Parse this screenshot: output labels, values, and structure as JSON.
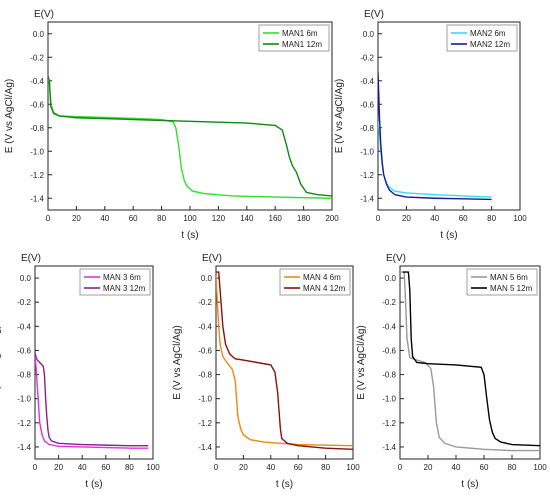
{
  "chart_data": [
    {
      "id": "MAN1",
      "type": "line",
      "title": "E(V)",
      "xlabel": "t (s)",
      "ylabel": "E (V vs AgCl/Ag)",
      "xlim": [
        0,
        200
      ],
      "ylim": [
        -1.5,
        0.1
      ],
      "xticks": [
        0,
        20,
        40,
        60,
        80,
        100,
        120,
        140,
        160,
        180,
        200
      ],
      "yticks": [
        0.0,
        -0.2,
        -0.4,
        -0.6,
        -0.8,
        -1.0,
        -1.2,
        -1.4
      ],
      "legend_position": "top-right",
      "series": [
        {
          "name": "MAN1 6m",
          "color": "#33dd33",
          "points": [
            [
              0,
              -0.38
            ],
            [
              1,
              -0.42
            ],
            [
              2,
              -0.6
            ],
            [
              4,
              -0.67
            ],
            [
              8,
              -0.7
            ],
            [
              20,
              -0.705
            ],
            [
              40,
              -0.712
            ],
            [
              60,
              -0.72
            ],
            [
              80,
              -0.73
            ],
            [
              88,
              -0.75
            ],
            [
              90,
              -0.8
            ],
            [
              92,
              -0.95
            ],
            [
              94,
              -1.15
            ],
            [
              96,
              -1.25
            ],
            [
              98,
              -1.3
            ],
            [
              102,
              -1.34
            ],
            [
              110,
              -1.36
            ],
            [
              130,
              -1.38
            ],
            [
              160,
              -1.39
            ],
            [
              200,
              -1.4
            ]
          ]
        },
        {
          "name": "MAN1 12m",
          "color": "#118811",
          "points": [
            [
              0,
              -0.36
            ],
            [
              1,
              -0.4
            ],
            [
              2,
              -0.62
            ],
            [
              4,
              -0.68
            ],
            [
              8,
              -0.7
            ],
            [
              20,
              -0.715
            ],
            [
              60,
              -0.73
            ],
            [
              100,
              -0.745
            ],
            [
              140,
              -0.76
            ],
            [
              160,
              -0.78
            ],
            [
              165,
              -0.82
            ],
            [
              168,
              -0.95
            ],
            [
              170,
              -1.05
            ],
            [
              172,
              -1.12
            ],
            [
              175,
              -1.18
            ],
            [
              178,
              -1.28
            ],
            [
              182,
              -1.35
            ],
            [
              190,
              -1.37
            ],
            [
              200,
              -1.38
            ]
          ]
        }
      ]
    },
    {
      "id": "MAN2",
      "type": "line",
      "title": "E(V)",
      "xlabel": "t (s)",
      "ylabel": "E (V vs AgCl/Ag)",
      "xlim": [
        0,
        100
      ],
      "ylim": [
        -1.5,
        0.1
      ],
      "xticks": [
        0,
        20,
        40,
        60,
        80,
        100
      ],
      "yticks": [
        0.0,
        -0.2,
        -0.4,
        -0.6,
        -0.8,
        -1.0,
        -1.2,
        -1.4
      ],
      "legend_position": "top-right",
      "series": [
        {
          "name": "MAN2 6m",
          "color": "#33ddee",
          "points": [
            [
              0,
              -0.75
            ],
            [
              1,
              -0.85
            ],
            [
              2,
              -1.0
            ],
            [
              3,
              -1.12
            ],
            [
              4,
              -1.2
            ],
            [
              6,
              -1.27
            ],
            [
              8,
              -1.31
            ],
            [
              12,
              -1.34
            ],
            [
              20,
              -1.355
            ],
            [
              40,
              -1.37
            ],
            [
              60,
              -1.38
            ],
            [
              80,
              -1.39
            ]
          ]
        },
        {
          "name": "MAN2 12m",
          "color": "#1a1a99",
          "points": [
            [
              0,
              -0.33
            ],
            [
              0.5,
              -0.5
            ],
            [
              1,
              -0.7
            ],
            [
              2,
              -0.95
            ],
            [
              3,
              -1.1
            ],
            [
              4,
              -1.2
            ],
            [
              6,
              -1.28
            ],
            [
              8,
              -1.33
            ],
            [
              12,
              -1.37
            ],
            [
              20,
              -1.39
            ],
            [
              40,
              -1.4
            ],
            [
              60,
              -1.405
            ],
            [
              80,
              -1.41
            ]
          ]
        }
      ]
    },
    {
      "id": "MAN3",
      "type": "line",
      "title": "E(V)",
      "xlabel": "t (s)",
      "ylabel": "E (V vs AgCl/Ag)",
      "xlim": [
        0,
        100
      ],
      "ylim": [
        -1.5,
        0.1
      ],
      "xticks": [
        0,
        20,
        40,
        60,
        80,
        100
      ],
      "yticks": [
        0.0,
        -0.2,
        -0.4,
        -0.6,
        -0.8,
        -1.0,
        -1.2,
        -1.4
      ],
      "legend_position": "top-right",
      "series": [
        {
          "name": "MAN 3 6m",
          "color": "#dd33dd",
          "points": [
            [
              0,
              -0.65
            ],
            [
              1,
              -0.75
            ],
            [
              2,
              -0.9
            ],
            [
              3,
              -1.05
            ],
            [
              4,
              -1.2
            ],
            [
              6,
              -1.3
            ],
            [
              8,
              -1.35
            ],
            [
              12,
              -1.38
            ],
            [
              20,
              -1.395
            ],
            [
              40,
              -1.4
            ],
            [
              60,
              -1.405
            ],
            [
              80,
              -1.41
            ],
            [
              96,
              -1.41
            ]
          ]
        },
        {
          "name": "MAN 3 12m",
          "color": "#882288",
          "points": [
            [
              0,
              -0.62
            ],
            [
              1,
              -0.66
            ],
            [
              2,
              -0.68
            ],
            [
              4,
              -0.7
            ],
            [
              7,
              -0.73
            ],
            [
              8,
              -0.8
            ],
            [
              9,
              -1.0
            ],
            [
              10,
              -1.15
            ],
            [
              11,
              -1.26
            ],
            [
              12,
              -1.32
            ],
            [
              14,
              -1.35
            ],
            [
              20,
              -1.37
            ],
            [
              40,
              -1.38
            ],
            [
              60,
              -1.385
            ],
            [
              80,
              -1.39
            ],
            [
              96,
              -1.39
            ]
          ]
        }
      ]
    },
    {
      "id": "MAN4",
      "type": "line",
      "title": "E(V)",
      "xlabel": "t (s)",
      "ylabel": "E (V vs AgCl/Ag)",
      "xlim": [
        0,
        100
      ],
      "ylim": [
        -1.5,
        0.1
      ],
      "xticks": [
        0,
        20,
        40,
        60,
        80,
        100
      ],
      "yticks": [
        0.0,
        -0.2,
        -0.4,
        -0.6,
        -0.8,
        -1.0,
        -1.2,
        -1.4
      ],
      "legend_position": "top-right",
      "series": [
        {
          "name": "MAN 4 6m",
          "color": "#ee8811",
          "points": [
            [
              0,
              0.02
            ],
            [
              1,
              -0.2
            ],
            [
              2,
              -0.4
            ],
            [
              3,
              -0.55
            ],
            [
              5,
              -0.65
            ],
            [
              8,
              -0.7
            ],
            [
              12,
              -0.76
            ],
            [
              14,
              -0.85
            ],
            [
              15,
              -1.0
            ],
            [
              16,
              -1.15
            ],
            [
              18,
              -1.25
            ],
            [
              20,
              -1.3
            ],
            [
              25,
              -1.34
            ],
            [
              35,
              -1.36
            ],
            [
              60,
              -1.38
            ],
            [
              100,
              -1.39
            ]
          ]
        },
        {
          "name": "MAN 4 12m",
          "color": "#881111",
          "points": [
            [
              0,
              0.05
            ],
            [
              2,
              0.05
            ],
            [
              3,
              -0.1
            ],
            [
              5,
              -0.4
            ],
            [
              7,
              -0.55
            ],
            [
              10,
              -0.63
            ],
            [
              14,
              -0.67
            ],
            [
              20,
              -0.68
            ],
            [
              30,
              -0.7
            ],
            [
              40,
              -0.72
            ],
            [
              43,
              -0.78
            ],
            [
              45,
              -0.95
            ],
            [
              46,
              -1.1
            ],
            [
              47,
              -1.25
            ],
            [
              48,
              -1.33
            ],
            [
              52,
              -1.37
            ],
            [
              60,
              -1.39
            ],
            [
              80,
              -1.41
            ],
            [
              100,
              -1.42
            ]
          ]
        }
      ]
    },
    {
      "id": "MAN5",
      "type": "line",
      "title": "E(V)",
      "xlabel": "t (s)",
      "ylabel": "E (V vs AgCl/Ag)",
      "xlim": [
        0,
        100
      ],
      "ylim": [
        -1.5,
        0.1
      ],
      "xticks": [
        0,
        20,
        40,
        60,
        80,
        100
      ],
      "yticks": [
        0.0,
        -0.2,
        -0.4,
        -0.6,
        -0.8,
        -1.0,
        -1.2,
        -1.4
      ],
      "legend_position": "top-right",
      "series": [
        {
          "name": "MAN 5 6m",
          "color": "#999999",
          "points": [
            [
              0,
              0.05
            ],
            [
              3,
              0.05
            ],
            [
              4,
              -0.2
            ],
            [
              5,
              -0.5
            ],
            [
              7,
              -0.66
            ],
            [
              12,
              -0.68
            ],
            [
              18,
              -0.7
            ],
            [
              22,
              -0.75
            ],
            [
              24,
              -0.9
            ],
            [
              25,
              -1.05
            ],
            [
              26,
              -1.2
            ],
            [
              28,
              -1.32
            ],
            [
              32,
              -1.37
            ],
            [
              40,
              -1.4
            ],
            [
              60,
              -1.42
            ],
            [
              80,
              -1.43
            ],
            [
              100,
              -1.43
            ]
          ]
        },
        {
          "name": "MAN 5 12m",
          "color": "#000000",
          "points": [
            [
              2,
              0.05
            ],
            [
              6,
              0.05
            ],
            [
              7,
              -0.1
            ],
            [
              8,
              -0.5
            ],
            [
              9,
              -0.65
            ],
            [
              12,
              -0.7
            ],
            [
              20,
              -0.71
            ],
            [
              40,
              -0.72
            ],
            [
              58,
              -0.74
            ],
            [
              60,
              -0.8
            ],
            [
              62,
              -1.0
            ],
            [
              64,
              -1.18
            ],
            [
              66,
              -1.28
            ],
            [
              68,
              -1.33
            ],
            [
              72,
              -1.36
            ],
            [
              80,
              -1.38
            ],
            [
              100,
              -1.39
            ]
          ]
        }
      ]
    }
  ]
}
